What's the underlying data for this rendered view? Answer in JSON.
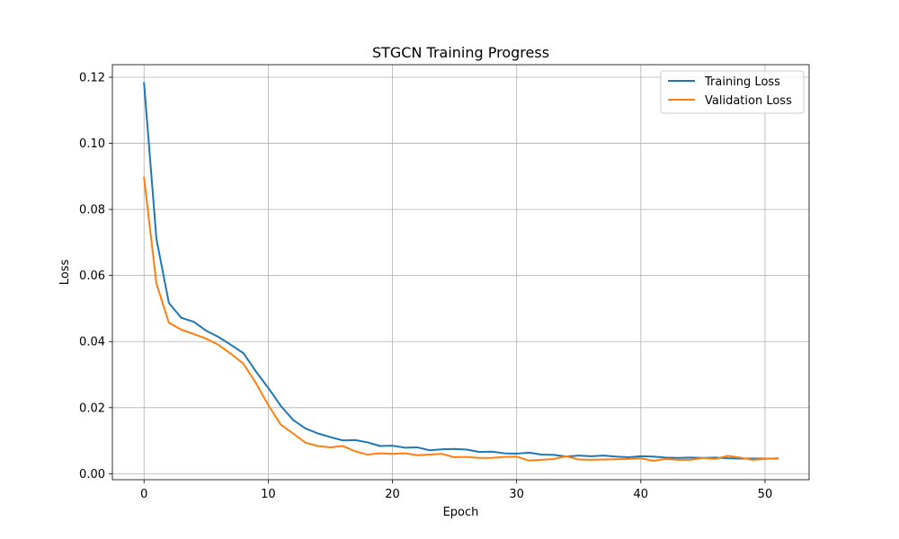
{
  "chart_data": {
    "type": "line",
    "title": "STGCN Training Progress",
    "xlabel": "Epoch",
    "ylabel": "Loss",
    "xlim": [
      -2.55,
      53.55
    ],
    "ylim": [
      -0.0018,
      0.1238
    ],
    "xticks": [
      0,
      10,
      20,
      30,
      40,
      50
    ],
    "yticks": [
      0.0,
      0.02,
      0.04,
      0.06,
      0.08,
      0.1,
      0.12
    ],
    "xtick_labels": [
      "0",
      "10",
      "20",
      "30",
      "40",
      "50"
    ],
    "ytick_labels": [
      "0.00",
      "0.02",
      "0.04",
      "0.06",
      "0.08",
      "0.10",
      "0.12"
    ],
    "grid": true,
    "legend_position": "top-right",
    "x": [
      0,
      1,
      2,
      3,
      4,
      5,
      6,
      7,
      8,
      9,
      10,
      11,
      12,
      13,
      14,
      15,
      16,
      17,
      18,
      19,
      20,
      21,
      22,
      23,
      24,
      25,
      26,
      27,
      28,
      29,
      30,
      31,
      32,
      33,
      34,
      35,
      36,
      37,
      38,
      39,
      40,
      41,
      42,
      43,
      44,
      45,
      46,
      47,
      48,
      49,
      50,
      51
    ],
    "series": [
      {
        "name": "Training Loss",
        "color": "#1f77b4",
        "values": [
          0.1182,
          0.071,
          0.0517,
          0.0472,
          0.046,
          0.0433,
          0.0414,
          0.039,
          0.0365,
          0.031,
          0.026,
          0.0206,
          0.0163,
          0.0137,
          0.0122,
          0.0111,
          0.0101,
          0.0102,
          0.0095,
          0.0084,
          0.0085,
          0.0079,
          0.008,
          0.0071,
          0.0074,
          0.0075,
          0.0073,
          0.0066,
          0.0067,
          0.0062,
          0.0061,
          0.0064,
          0.0058,
          0.0057,
          0.0052,
          0.0055,
          0.0053,
          0.0055,
          0.0052,
          0.005,
          0.0053,
          0.0052,
          0.0049,
          0.0048,
          0.0049,
          0.0048,
          0.0049,
          0.0047,
          0.0046,
          0.0046,
          0.0046,
          0.0046
        ]
      },
      {
        "name": "Validation Loss",
        "color": "#ff7f0e",
        "values": [
          0.0896,
          0.0575,
          0.0457,
          0.0436,
          0.0423,
          0.0409,
          0.039,
          0.0363,
          0.0333,
          0.0275,
          0.0208,
          0.0149,
          0.0122,
          0.0094,
          0.0084,
          0.008,
          0.0084,
          0.0068,
          0.0058,
          0.0062,
          0.006,
          0.0062,
          0.0056,
          0.0058,
          0.006,
          0.005,
          0.0051,
          0.0048,
          0.0048,
          0.0051,
          0.0052,
          0.004,
          0.0042,
          0.0045,
          0.0053,
          0.0043,
          0.0042,
          0.0043,
          0.0044,
          0.0045,
          0.0047,
          0.0039,
          0.0045,
          0.0042,
          0.0042,
          0.0048,
          0.0045,
          0.0054,
          0.0049,
          0.0042,
          0.0045,
          0.0047
        ]
      }
    ]
  }
}
